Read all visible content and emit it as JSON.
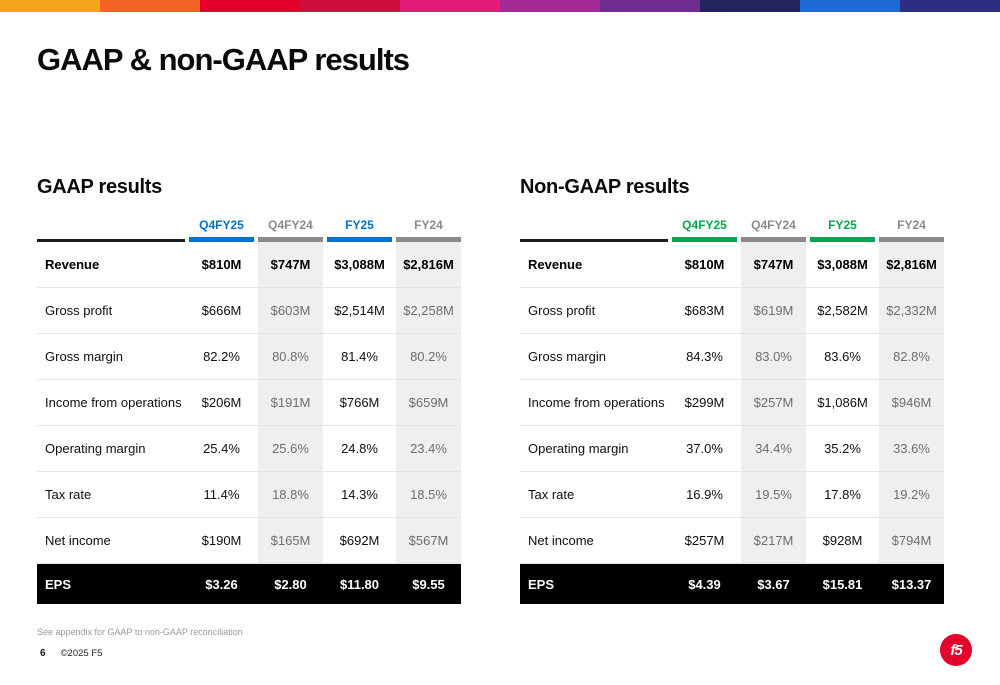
{
  "slide": {
    "title": "GAAP & non-GAAP results",
    "footnote": "See appendix for GAAP to non-GAAP reconciliation",
    "page_number": "6",
    "copyright": "©2025 F5",
    "logo_text": "f5"
  },
  "colors": {
    "gaap_accent": "#0072CE",
    "non_gaap_accent": "#00A74E",
    "muted_header": "#8A8A8D",
    "shaded_column_bg": "#EFEFEF",
    "eps_row_bg": "#000000",
    "logo_red": "#E4002B"
  },
  "brand_stripe": [
    "#F4A51C",
    "#F06322",
    "#E4002B",
    "#CE0F3D",
    "#E31C79",
    "#A42A95",
    "#6E2B90",
    "#23245F",
    "#1E6BD6",
    "#2D2E83"
  ],
  "tables": [
    {
      "heading": "GAAP results",
      "accent_color": "#0072CE",
      "columns": [
        {
          "label": "Q4FY25",
          "accent": true,
          "shaded": false
        },
        {
          "label": "Q4FY24",
          "accent": false,
          "shaded": true
        },
        {
          "label": "FY25",
          "accent": true,
          "shaded": false
        },
        {
          "label": "FY24",
          "accent": false,
          "shaded": true
        }
      ],
      "rows": [
        {
          "label": "Revenue",
          "values": [
            "$810M",
            "$747M",
            "$3,088M",
            "$2,816M"
          ],
          "emphasis": true
        },
        {
          "label": "Gross profit",
          "values": [
            "$666M",
            "$603M",
            "$2,514M",
            "$2,258M"
          ]
        },
        {
          "label": "Gross margin",
          "values": [
            "82.2%",
            "80.8%",
            "81.4%",
            "80.2%"
          ]
        },
        {
          "label": "Income from operations",
          "values": [
            "$206M",
            "$191M",
            "$766M",
            "$659M"
          ]
        },
        {
          "label": "Operating margin",
          "values": [
            "25.4%",
            "25.6%",
            "24.8%",
            "23.4%"
          ]
        },
        {
          "label": "Tax rate",
          "values": [
            "11.4%",
            "18.8%",
            "14.3%",
            "18.5%"
          ]
        },
        {
          "label": "Net income",
          "values": [
            "$190M",
            "$165M",
            "$692M",
            "$567M"
          ]
        }
      ],
      "footer_row": {
        "label": "EPS",
        "values": [
          "$3.26",
          "$2.80",
          "$11.80",
          "$9.55"
        ]
      }
    },
    {
      "heading": "Non-GAAP results",
      "accent_color": "#00A74E",
      "columns": [
        {
          "label": "Q4FY25",
          "accent": true,
          "shaded": false
        },
        {
          "label": "Q4FY24",
          "accent": false,
          "shaded": true
        },
        {
          "label": "FY25",
          "accent": true,
          "shaded": false
        },
        {
          "label": "FY24",
          "accent": false,
          "shaded": true
        }
      ],
      "rows": [
        {
          "label": "Revenue",
          "values": [
            "$810M",
            "$747M",
            "$3,088M",
            "$2,816M"
          ],
          "emphasis": true
        },
        {
          "label": "Gross profit",
          "values": [
            "$683M",
            "$619M",
            "$2,582M",
            "$2,332M"
          ]
        },
        {
          "label": "Gross margin",
          "values": [
            "84.3%",
            "83.0%",
            "83.6%",
            "82.8%"
          ]
        },
        {
          "label": "Income from operations",
          "values": [
            "$299M",
            "$257M",
            "$1,086M",
            "$946M"
          ]
        },
        {
          "label": "Operating margin",
          "values": [
            "37.0%",
            "34.4%",
            "35.2%",
            "33.6%"
          ]
        },
        {
          "label": "Tax rate",
          "values": [
            "16.9%",
            "19.5%",
            "17.8%",
            "19.2%"
          ]
        },
        {
          "label": "Net income",
          "values": [
            "$257M",
            "$217M",
            "$928M",
            "$794M"
          ]
        }
      ],
      "footer_row": {
        "label": "EPS",
        "values": [
          "$4.39",
          "$3.67",
          "$15.81",
          "$13.37"
        ]
      }
    }
  ]
}
